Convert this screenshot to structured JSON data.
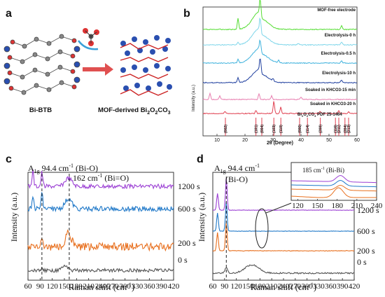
{
  "panel_a": {
    "label": "a",
    "left_caption": "Bi-BTB",
    "right_caption_main": "MOF-derived Bi",
    "right_caption_sub1": "2",
    "right_caption_mid": "O",
    "right_caption_sub2": "2",
    "right_caption_end": "CO",
    "right_caption_sub3": "3"
  },
  "chart_data": [
    {
      "id": "panel_b",
      "type": "line",
      "label": "b",
      "xlabel": "2θ (Degree)",
      "ylabel": "Intensity (a.u.)",
      "xlim": [
        5,
        60
      ],
      "xticks": [
        10,
        20,
        30,
        40,
        50,
        60
      ],
      "series": [
        {
          "name": "MOF-free electrode",
          "color": "#55dd33"
        },
        {
          "name": "Electrolysis-0 h",
          "color": "#7fd6ea"
        },
        {
          "name": "Electrolysis-0.5 h",
          "color": "#3fb2dd"
        },
        {
          "name": "Electrolysis-10 h",
          "color": "#1f3f9f"
        },
        {
          "name": "Soaked in KHCO3-15 min",
          "color": "#e87fb0"
        },
        {
          "name": "Soaked in KHCO3-20 h",
          "color": "#e04050"
        }
      ],
      "reference": {
        "name": "Bi2O2CO3 PDF 25-1464",
        "peaks": [
          {
            "x": 13.0,
            "label": "(002)"
          },
          {
            "x": 23.9,
            "label": "(101)"
          },
          {
            "x": 26.0,
            "label": "(004)"
          },
          {
            "x": 30.3,
            "label": "(103)"
          },
          {
            "x": 32.8,
            "label": "(110)"
          },
          {
            "x": 39.5,
            "label": "(006)"
          },
          {
            "x": 42.3,
            "label": "(114)"
          },
          {
            "x": 46.9,
            "label": "(200)"
          },
          {
            "x": 52.3,
            "label": "(116)"
          },
          {
            "x": 53.5,
            "label": "(211)"
          },
          {
            "x": 55.7,
            "label": "(204)"
          },
          {
            "x": 57.0,
            "label": "(213)"
          }
        ]
      }
    },
    {
      "id": "panel_c",
      "type": "line",
      "label": "c",
      "xlabel": "Raman shift (cm⁻¹)",
      "ylabel": "Intensity (a.u.)",
      "xlim": [
        60,
        420
      ],
      "xticks": [
        60,
        90,
        120,
        150,
        180,
        210,
        240,
        270,
        300,
        330,
        360,
        390,
        420
      ],
      "annotations": [
        {
          "x": 94.4,
          "text": "A1g 94.4 cm⁻¹ (Bi-O)"
        },
        {
          "x": 162,
          "text": "162 cm⁻¹ (Bi=O)"
        }
      ],
      "series": [
        {
          "name": "1200 s",
          "color": "#9b3fd4"
        },
        {
          "name": "600 s",
          "color": "#1f78c8"
        },
        {
          "name": "200 s",
          "color": "#e8701f"
        },
        {
          "name": "0 s",
          "color": "#555555"
        }
      ]
    },
    {
      "id": "panel_d",
      "type": "line",
      "label": "d",
      "xlabel": "Raman shift (cm⁻¹)",
      "ylabel": "Intensity (a.u.)",
      "xlim": [
        60,
        420
      ],
      "xticks": [
        60,
        90,
        120,
        150,
        180,
        210,
        240,
        270,
        300,
        330,
        360,
        390,
        420
      ],
      "annotations": [
        {
          "x": 94.4,
          "text": "A1g 94.4 cm⁻¹ (Bi-O)"
        }
      ],
      "inset": {
        "annotation": "185 cm⁻¹ (Bi-Bi)",
        "xticks": [
          120,
          150,
          180,
          210,
          240
        ]
      },
      "series": [
        {
          "name": "1200 s",
          "color": "#9b3fd4"
        },
        {
          "name": "600 s",
          "color": "#1f78c8"
        },
        {
          "name": "200 s",
          "color": "#e8701f"
        },
        {
          "name": "0 s",
          "color": "#555555"
        }
      ]
    }
  ],
  "text": {
    "b_xlabel": "2θ (Degree)",
    "b_ylabel": "Intensity (a.u.)",
    "b_ref_main": "Bi",
    "b_ref_rest": " PDF 25-1464",
    "c_xlabel_main": "Raman shift (cm",
    "c_xlabel_sup": "-1",
    "c_xlabel_end": ")",
    "c_ylabel": "Intensity (a.u.)",
    "c_a1g_main": "A",
    "c_a1g_sub": "1g",
    "c_a1g_val": " 94.4 cm",
    "c_a1g_sup": "-1",
    "c_a1g_end": " (Bi-O)",
    "c_162_main": "162 cm",
    "c_162_sup": "-1",
    "c_162_end": " (Bi=O)",
    "d_a1g_main": "A",
    "d_a1g_sub": "1g",
    "d_a1g_val": " 94.4 cm",
    "d_a1g_sup": "-1",
    "d_bio": "(Bi-O)",
    "d_inset_main": "185 cm",
    "d_inset_sup": "-1",
    "d_inset_end": " (Bi-Bi)"
  }
}
